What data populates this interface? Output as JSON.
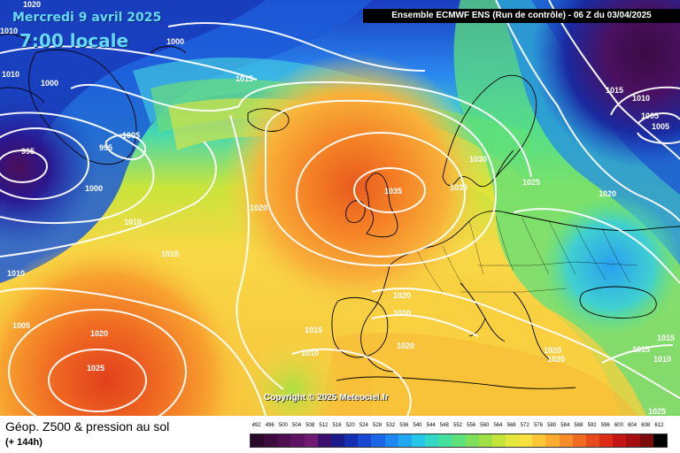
{
  "header": {
    "date_label": "Mercredi 9 avril 2025",
    "time_label": "7:00 locale",
    "run_info": "Ensemble ECMWF ENS  (Run de contrôle)  -  06 Z du 03/04/2025"
  },
  "copyright": "Copyright © 2025 Meteociel.fr",
  "footer": {
    "title": "Géop. Z500 & pression au sol",
    "subtitle": "(+ 144h)"
  },
  "scale": {
    "labels": [
      "492",
      "496",
      "500",
      "504",
      "508",
      "512",
      "516",
      "520",
      "524",
      "528",
      "532",
      "536",
      "540",
      "544",
      "548",
      "552",
      "556",
      "560",
      "564",
      "568",
      "572",
      "576",
      "580",
      "584",
      "588",
      "592",
      "596",
      "600",
      "604",
      "608",
      "612"
    ],
    "colors": [
      "#2a0a2a",
      "#3c0c3e",
      "#4c1050",
      "#5e1462",
      "#701a74",
      "#3a0e6a",
      "#1a1a8a",
      "#1430b0",
      "#1848d0",
      "#1a66e6",
      "#1c88f0",
      "#22a8f0",
      "#28c6e8",
      "#34d8c8",
      "#44e0a0",
      "#5ee07a",
      "#7ee05a",
      "#a0e044",
      "#c4e43a",
      "#e4e83a",
      "#f8e040",
      "#fcc83a",
      "#fcac30",
      "#f88c28",
      "#f06c22",
      "#e64c1c",
      "#dc2c18",
      "#c41414",
      "#a41010",
      "#7c0c0c",
      "#000000"
    ]
  },
  "map": {
    "isobar_labels": [
      {
        "text": "1020"
      },
      {
        "text": "1010"
      },
      {
        "text": "1000"
      },
      {
        "text": "1010"
      },
      {
        "text": "1000"
      },
      {
        "text": "1015"
      },
      {
        "text": "1005"
      },
      {
        "text": "995"
      },
      {
        "text": "995"
      },
      {
        "text": "1000"
      },
      {
        "text": "1010"
      },
      {
        "text": "1015"
      },
      {
        "text": "1020"
      },
      {
        "text": "1035"
      },
      {
        "text": "1030"
      },
      {
        "text": "1030"
      },
      {
        "text": "1025"
      },
      {
        "text": "1020"
      },
      {
        "text": "1015"
      },
      {
        "text": "1010"
      },
      {
        "text": "1005"
      },
      {
        "text": "1005"
      },
      {
        "text": "1010"
      },
      {
        "text": "1005"
      },
      {
        "text": "1020"
      },
      {
        "text": "1025"
      },
      {
        "text": "1015"
      },
      {
        "text": "1010"
      },
      {
        "text": "1020"
      },
      {
        "text": "1020"
      },
      {
        "text": "1020"
      },
      {
        "text": "1020"
      },
      {
        "text": "1020"
      },
      {
        "text": "1015"
      },
      {
        "text": "1010"
      },
      {
        "text": "1015"
      },
      {
        "text": "1025"
      }
    ]
  }
}
